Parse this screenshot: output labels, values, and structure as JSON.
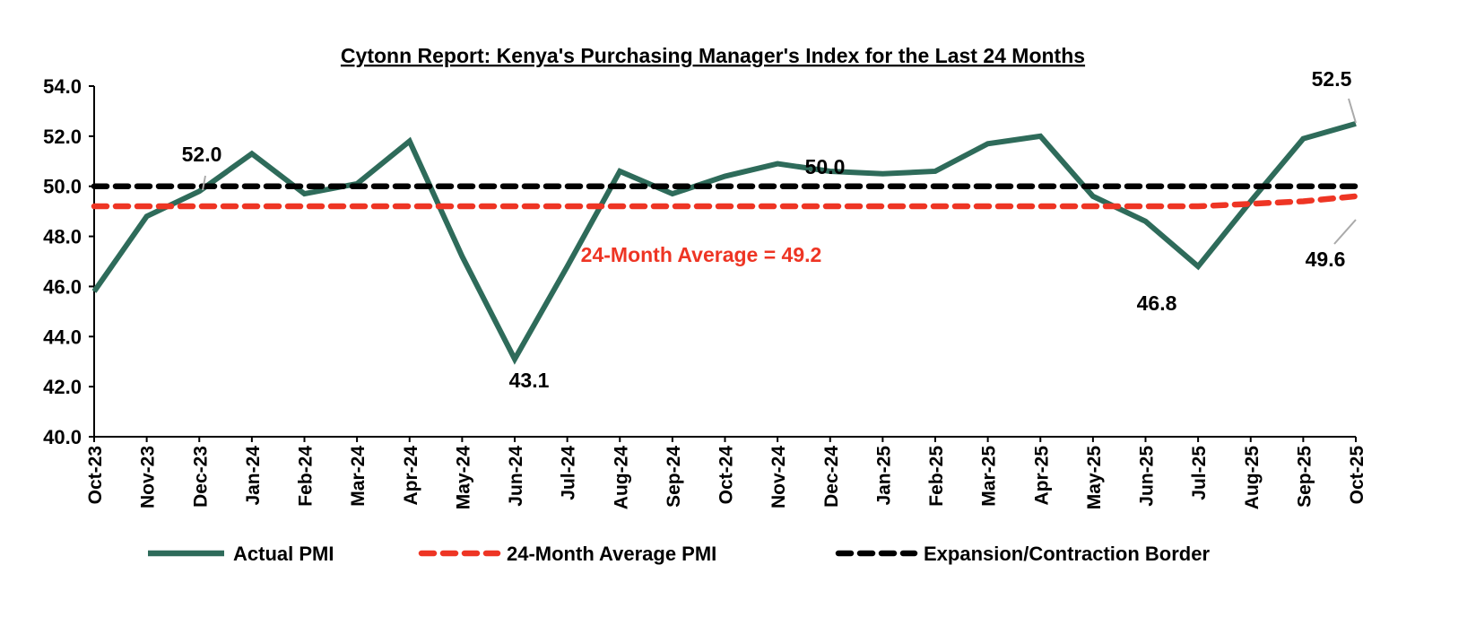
{
  "chart_data": {
    "type": "line",
    "title": "Cytonn Report: Kenya's Purchasing Manager's Index for the Last 24 Months",
    "xlabel": "",
    "ylabel": "",
    "ylim": [
      40,
      54
    ],
    "yticks": [
      "40.0",
      "42.0",
      "44.0",
      "46.0",
      "48.0",
      "50.0",
      "52.0",
      "54.0"
    ],
    "grid": false,
    "legend_position": "bottom",
    "categories": [
      "Oct-23",
      "Nov-23",
      "Dec-23",
      "Jan-24",
      "Feb-24",
      "Mar-24",
      "Apr-24",
      "May-24",
      "Jun-24",
      "Jul-24",
      "Aug-24",
      "Sep-24",
      "Oct-24",
      "Nov-24",
      "Dec-24",
      "Jan-25",
      "Feb-25",
      "Mar-25",
      "Apr-25",
      "May-25",
      "Jun-25",
      "Jul-25",
      "Aug-25",
      "Sep-25",
      "Oct-25"
    ],
    "series": [
      {
        "name": "Actual PMI",
        "color": "#2e6b5a",
        "style": "solid",
        "values": [
          45.8,
          48.8,
          49.8,
          51.3,
          49.7,
          50.1,
          51.8,
          47.2,
          43.1,
          46.8,
          50.6,
          49.7,
          50.4,
          50.9,
          50.6,
          50.5,
          50.6,
          51.7,
          52.0,
          49.6,
          48.6,
          46.8,
          49.4,
          51.9,
          52.5
        ]
      },
      {
        "name": "24-Month Average PMI",
        "color": "#ee3524",
        "style": "dashed",
        "values": [
          49.2,
          49.2,
          49.2,
          49.2,
          49.2,
          49.2,
          49.2,
          49.2,
          49.2,
          49.2,
          49.2,
          49.2,
          49.2,
          49.2,
          49.2,
          49.2,
          49.2,
          49.2,
          49.2,
          49.2,
          49.2,
          49.2,
          49.3,
          49.4,
          49.6
        ]
      },
      {
        "name": "Expansion/Contraction Border",
        "color": "#000000",
        "style": "dashed",
        "values": [
          50,
          50,
          50,
          50,
          50,
          50,
          50,
          50,
          50,
          50,
          50,
          50,
          50,
          50,
          50,
          50,
          50,
          50,
          50,
          50,
          50,
          50,
          50,
          50,
          50
        ]
      }
    ],
    "annotations": [
      {
        "text": "52.0",
        "color": "#000000"
      },
      {
        "text": "43.1",
        "color": "#000000"
      },
      {
        "text": "50.0",
        "color": "#000000"
      },
      {
        "text": "46.8",
        "color": "#000000"
      },
      {
        "text": "52.5",
        "color": "#000000"
      },
      {
        "text": "49.6",
        "color": "#000000"
      },
      {
        "text": "24-Month Average = 49.2",
        "color": "#ee3524"
      }
    ]
  }
}
